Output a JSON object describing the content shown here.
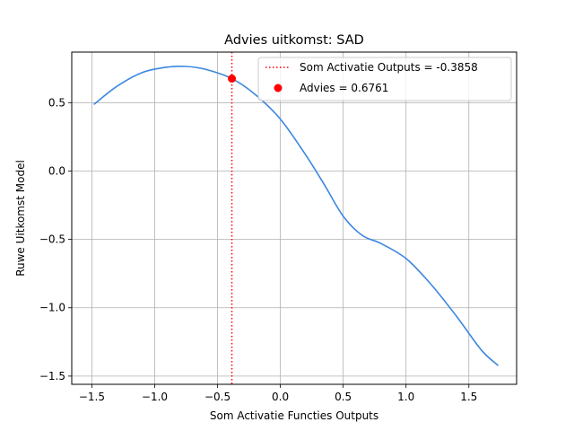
{
  "chart_data": {
    "type": "line",
    "title": "Advies uitkomst: SAD",
    "xlabel": "Som Activatie Functies Outputs",
    "ylabel": "Ruwe Uitkomst Model",
    "xlim": [
      -1.66,
      1.88
    ],
    "ylim": [
      -1.56,
      0.87
    ],
    "xticks": [
      -1.5,
      -1.0,
      -0.5,
      0.0,
      0.5,
      1.0,
      1.5
    ],
    "xtick_labels": [
      "−1.5",
      "−1.0",
      "−0.5",
      "0.0",
      "0.5",
      "1.0",
      "1.5"
    ],
    "yticks": [
      0.5,
      0.0,
      -0.5,
      -1.0,
      -1.5
    ],
    "ytick_labels": [
      "0.5",
      "0.0",
      "−0.5",
      "−1.0",
      "−1.5"
    ],
    "grid": true,
    "legend_position": "top-right",
    "colors": {
      "curve": "#3b87e0",
      "marker": "#ff0000",
      "vline": "#ff0000"
    },
    "series": [
      {
        "x": [
          -1.48,
          -1.3,
          -1.1,
          -0.9,
          -0.75,
          -0.6,
          -0.386,
          -0.2,
          0.0,
          0.2,
          0.35,
          0.5,
          0.65,
          0.8,
          1.0,
          1.2,
          1.4,
          1.6,
          1.73
        ],
        "y": [
          0.49,
          0.62,
          0.72,
          0.76,
          0.765,
          0.745,
          0.676,
          0.56,
          0.38,
          0.12,
          -0.1,
          -0.33,
          -0.47,
          -0.53,
          -0.64,
          -0.83,
          -1.06,
          -1.31,
          -1.42
        ]
      }
    ],
    "vline": {
      "x": -0.3858,
      "legend": "Som Activatie Outputs = -0.3858"
    },
    "point": {
      "x": -0.3858,
      "y": 0.6761,
      "legend": "Advies = 0.6761"
    }
  }
}
